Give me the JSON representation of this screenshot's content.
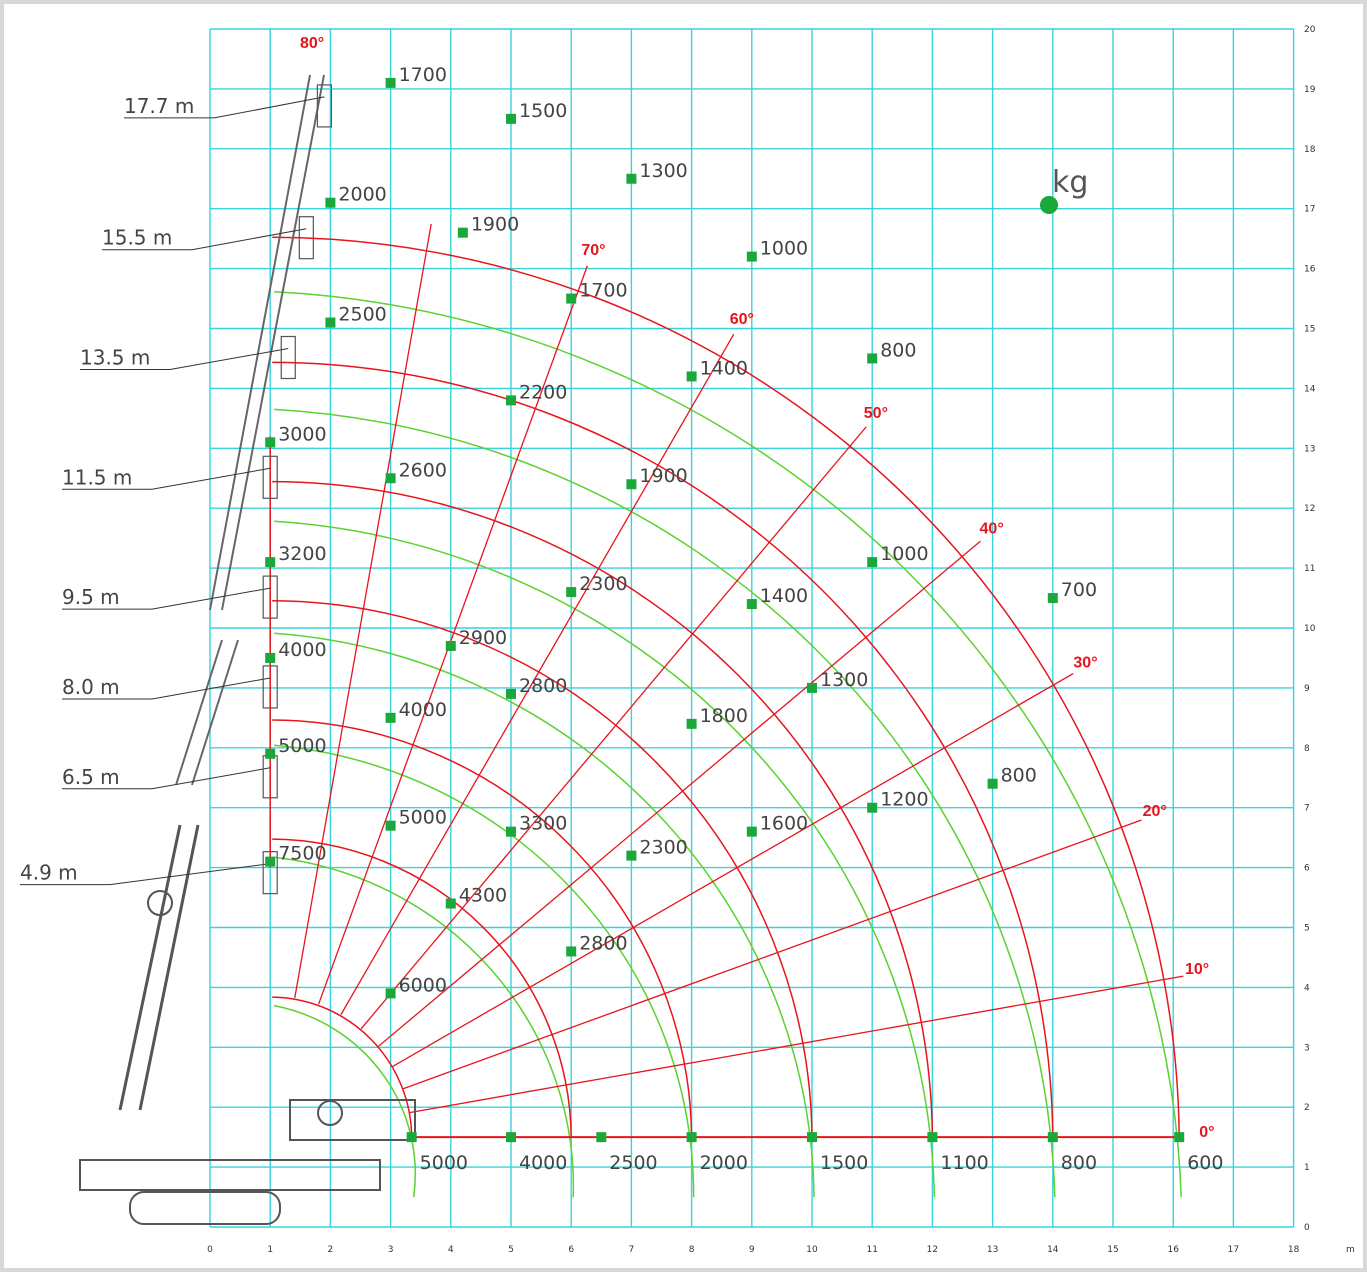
{
  "chart_data": {
    "type": "load_chart",
    "unit_label": "kg",
    "x_axis_unit": "m",
    "xlim": [
      0,
      18
    ],
    "ylim": [
      0,
      20
    ],
    "x_ticks": [
      "0",
      "1",
      "2",
      "3",
      "4",
      "5",
      "6",
      "7",
      "8",
      "9",
      "10",
      "11",
      "12",
      "13",
      "14",
      "15",
      "16",
      "17",
      "18"
    ],
    "y_ticks": [
      "0",
      "1",
      "2",
      "3",
      "4",
      "5",
      "6",
      "7",
      "8",
      "9",
      "10",
      "11",
      "12",
      "13",
      "14",
      "15",
      "16",
      "17",
      "18",
      "19",
      "20"
    ],
    "colors": {
      "grid": "#38d4dc",
      "boom_arc": "#e8141c",
      "hook_arc": "#5ad230",
      "point": "#1aa83a",
      "angle_label": "#e8141c"
    },
    "boom_lengths": [
      {
        "label": "17.7  m",
        "length": 17.7
      },
      {
        "label": "15.5  m",
        "length": 15.5
      },
      {
        "label": "13.5  m",
        "length": 13.5
      },
      {
        "label": "11.5  m",
        "length": 11.5
      },
      {
        "label": "9.5  m",
        "length": 9.5
      },
      {
        "label": "8.0  m",
        "length": 8.0
      },
      {
        "label": "6.5  m",
        "length": 6.5
      },
      {
        "label": "4.9  m",
        "length": 4.9
      }
    ],
    "angle_labels": [
      {
        "text": "80°",
        "angle": 80
      },
      {
        "text": "70°",
        "angle": 70
      },
      {
        "text": "60°",
        "angle": 60
      },
      {
        "text": "50°",
        "angle": 50
      },
      {
        "text": "40°",
        "angle": 40
      },
      {
        "text": "30°",
        "angle": 30
      },
      {
        "text": "20°",
        "angle": 20
      },
      {
        "text": "10°",
        "angle": 10
      },
      {
        "text": "0°",
        "angle": 0
      }
    ],
    "load_points": [
      {
        "x": 3,
        "y": 19.1,
        "kg": "1700"
      },
      {
        "x": 5,
        "y": 18.5,
        "kg": "1500"
      },
      {
        "x": 7,
        "y": 17.5,
        "kg": "1300"
      },
      {
        "x": 9,
        "y": 16.2,
        "kg": "1000"
      },
      {
        "x": 11,
        "y": 14.5,
        "kg": "800"
      },
      {
        "x": 14,
        "y": 10.5,
        "kg": "700"
      },
      {
        "x": 16.1,
        "y": 1.5,
        "kg": "600"
      },
      {
        "x": 2,
        "y": 17.1,
        "kg": "2000"
      },
      {
        "x": 4.2,
        "y": 16.6,
        "kg": "1900"
      },
      {
        "x": 6,
        "y": 15.5,
        "kg": "1700"
      },
      {
        "x": 8,
        "y": 14.2,
        "kg": "1400"
      },
      {
        "x": 11,
        "y": 11.1,
        "kg": "1000"
      },
      {
        "x": 13,
        "y": 7.4,
        "kg": "800"
      },
      {
        "x": 14,
        "y": 1.5,
        "kg": "800"
      },
      {
        "x": 2,
        "y": 15.1,
        "kg": "2500"
      },
      {
        "x": 5,
        "y": 13.8,
        "kg": "2200"
      },
      {
        "x": 7,
        "y": 12.4,
        "kg": "1900"
      },
      {
        "x": 9,
        "y": 10.4,
        "kg": "1400"
      },
      {
        "x": 11,
        "y": 7.0,
        "kg": "1200"
      },
      {
        "x": 12,
        "y": 1.5,
        "kg": "1100"
      },
      {
        "x": 1,
        "y": 13.1,
        "kg": "3000"
      },
      {
        "x": 3,
        "y": 12.5,
        "kg": "2600"
      },
      {
        "x": 6,
        "y": 10.6,
        "kg": "2300"
      },
      {
        "x": 8,
        "y": 8.4,
        "kg": "1800"
      },
      {
        "x": 9,
        "y": 6.6,
        "kg": "1600"
      },
      {
        "x": 10,
        "y": 9.0,
        "kg": "1300"
      },
      {
        "x": 10,
        "y": 1.5,
        "kg": "1500"
      },
      {
        "x": 1,
        "y": 11.1,
        "kg": "3200"
      },
      {
        "x": 4,
        "y": 9.7,
        "kg": "2900"
      },
      {
        "x": 5,
        "y": 8.9,
        "kg": "2800"
      },
      {
        "x": 7,
        "y": 6.2,
        "kg": "2300"
      },
      {
        "x": 8,
        "y": 1.5,
        "kg": "2000"
      },
      {
        "x": 1,
        "y": 9.5,
        "kg": "4000"
      },
      {
        "x": 3,
        "y": 8.5,
        "kg": "4000"
      },
      {
        "x": 5,
        "y": 6.6,
        "kg": "3300"
      },
      {
        "x": 6,
        "y": 4.6,
        "kg": "2800"
      },
      {
        "x": 6.5,
        "y": 1.5,
        "kg": "2500"
      },
      {
        "x": 1,
        "y": 7.9,
        "kg": "5000"
      },
      {
        "x": 3,
        "y": 6.7,
        "kg": "5000"
      },
      {
        "x": 4,
        "y": 5.4,
        "kg": "4300"
      },
      {
        "x": 5,
        "y": 1.5,
        "kg": "4000"
      },
      {
        "x": 1,
        "y": 6.1,
        "kg": "7500"
      },
      {
        "x": 3,
        "y": 3.9,
        "kg": "6000"
      },
      {
        "x": 3.35,
        "y": 1.5,
        "kg": "5000"
      }
    ]
  }
}
